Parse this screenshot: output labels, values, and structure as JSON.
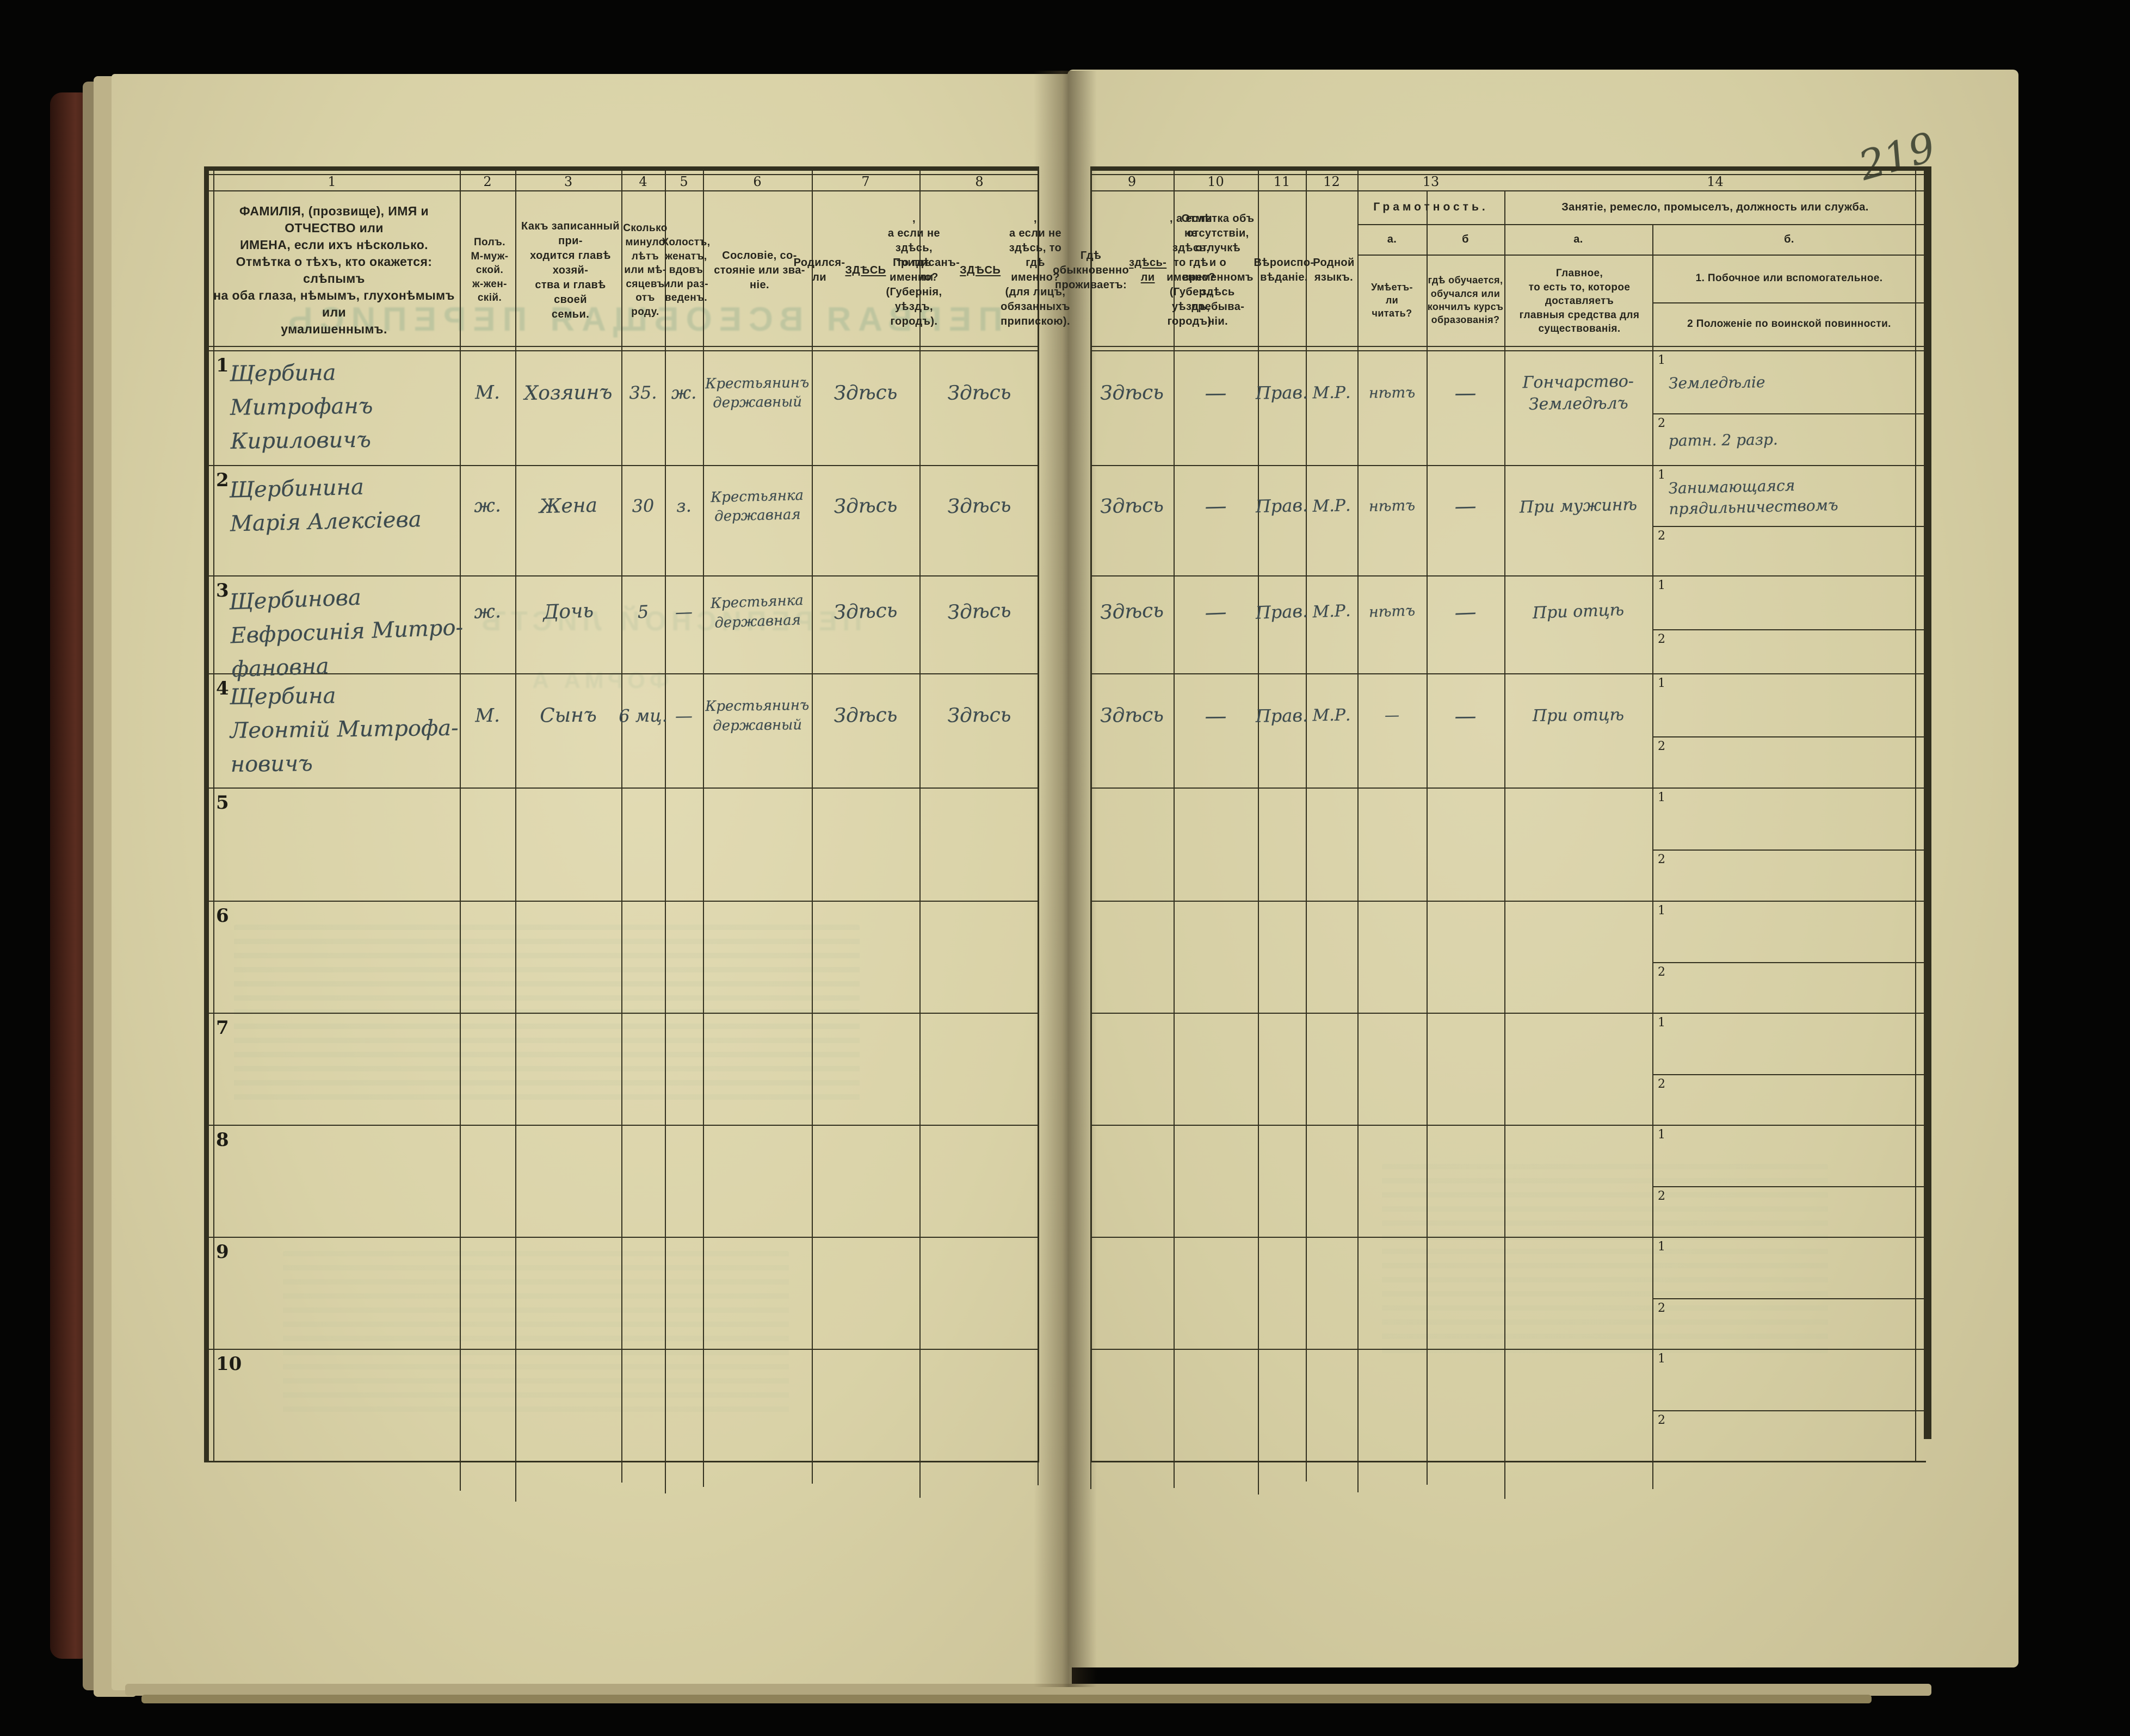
{
  "page": {
    "number": "219"
  },
  "bleedthrough": {
    "title": "ПЕРВАЯ ВСЕОБЩАЯ ПЕРЕПИСЬ",
    "subtitle": "ПЕРЕПИСНОЙ ЛИСТЪ",
    "form": "ФОРМА А"
  },
  "table": {
    "column_numbers": [
      "1",
      "2",
      "3",
      "4",
      "5",
      "6",
      "7",
      "8",
      "9",
      "10",
      "11",
      "12",
      "13",
      "14"
    ],
    "headers": {
      "c1": "ФАМИЛІЯ, (прозвище), ИМЯ и ОТЧЕСТВО или\nИМЕНА, если ихъ нѣсколько.\nОтмѣтка о тѣхъ, кто окажется: слѣпымъ\nна оба глаза, нѣмымъ, глухонѣмымъ или\nумалишеннымъ.",
      "c2": "Полъ.\nМ-муж-\nской.\nж-жен-\nскій.",
      "c3": "Какъ записанный при-\nходится главѣ хозяй-\nства и главѣ своей\nсемьи.",
      "c4": "Сколько\nминуло\nлѣтъ\nили мѣ-\nсяцевъ\nотъ роду.",
      "c5": "Холостъ,\nженатъ,\nвдовъ\nили раз-\nведенъ.",
      "c6": "Сословіе, со-\nстояніе или зва-\nніе.",
      "c7": "Родился-ли ЗДѢСЬ,\nа если не здѣсь,\nто гдѣ именно?\n(Губернія, уѣздъ, городъ).",
      "c8": "Приписанъ-ли ЗДѢСЬ,\nа если не здѣсь, то гдѣ\nименно?\n(для лицъ, обязанныхъ\nприпискою).",
      "c9": "Гдѣ обыкновенно\nпроживаетъ:\nздѣсь-ли, а если\nне здѣсь, то гдѣ\nименно?\n(Губер., уѣздъ, городъ).",
      "c10": "Отмѣтка объ\nотсутствіи, отлучкѣ\nи о временномъ\nздѣсь пребыва-\nніи.",
      "c11": "Вѣроиспо-\nвѣданіе.",
      "c12": "Родной\nязыкъ.",
      "c13_group": "Грамотность.",
      "c13a_label": "а.",
      "c13b_label": "б",
      "c13a": "Умѣетъ-\nли\nчитать?",
      "c13b": "гдѣ обучается,\nобучался или\nкончилъ курсъ\nобразованія?",
      "c14_group": "Занятіе, ремесло, промыселъ, должность или служба.",
      "c14a_label": "а.",
      "c14b_label": "б.",
      "c14a": "Главное,\nто есть то, которое доставляетъ\nглавныя средства для существованія.",
      "c14b1": "1. Побочное или вспомогательное.",
      "c14b2": "2 Положеніе по воинской повинности.",
      "row_sub_index1": "1",
      "row_sub_index2": "2"
    },
    "rows": [
      {
        "num": "1",
        "c1": "Щербина\nМитрофанъ Кириловичъ",
        "c2": "М.",
        "c3": "Хозяинъ",
        "c4": "35.",
        "c5": "ж.",
        "c6": "Крестьянинъ\nдержавный",
        "c7": "Здѣсь",
        "c8": "Здѣсь",
        "c9": "Здѣсь",
        "c10": "—",
        "c11": "Прав.",
        "c12": "М.Р.",
        "c13a": "нѣтъ",
        "c13b": "—",
        "c14a": "Гончарство-\nЗемледѣлъ",
        "c14b1": "Земледѣліе",
        "c14b2": "ратн. 2 разр."
      },
      {
        "num": "2",
        "c1": "Щербинина\nМарія Алексіева",
        "c2": "ж.",
        "c3": "Жена",
        "c4": "30",
        "c5": "з.",
        "c6": "Крестьянка\nдержавная",
        "c7": "Здѣсь",
        "c8": "Здѣсь",
        "c9": "Здѣсь",
        "c10": "—",
        "c11": "Прав.",
        "c12": "М.Р.",
        "c13a": "нѣтъ",
        "c13b": "—",
        "c14a": "При мужинѣ",
        "c14b1": "Занимающаяся\nпрядильничествомъ",
        "c14b2": ""
      },
      {
        "num": "3",
        "c1": "Щербинова\nЕвфросинія Митро-\nфановна",
        "c2": "ж.",
        "c3": "Дочь",
        "c4": "5",
        "c5": "—",
        "c6": "Крестьянка\nдержавная",
        "c7": "Здѣсь",
        "c8": "Здѣсь",
        "c9": "Здѣсь",
        "c10": "—",
        "c11": "Прав.",
        "c12": "М.Р.",
        "c13a": "нѣтъ",
        "c13b": "—",
        "c14a": "При отцѣ",
        "c14b1": "",
        "c14b2": ""
      },
      {
        "num": "4",
        "c1": "Щербина\nЛеонтій Митрофа-\nновичъ",
        "c2": "М.",
        "c3": "Сынъ",
        "c4": "6 мц.",
        "c5": "—",
        "c6": "Крестьянинъ\nдержавный",
        "c7": "Здѣсь",
        "c8": "Здѣсь",
        "c9": "Здѣсь",
        "c10": "—",
        "c11": "Прав.",
        "c12": "М.Р.",
        "c13a": "—",
        "c13b": "—",
        "c14a": "При отцѣ",
        "c14b1": "",
        "c14b2": ""
      },
      {
        "num": "5",
        "c1": "",
        "c2": "",
        "c3": "",
        "c4": "",
        "c5": "",
        "c6": "",
        "c7": "",
        "c8": "",
        "c9": "",
        "c10": "",
        "c11": "",
        "c12": "",
        "c13a": "",
        "c13b": "",
        "c14a": "",
        "c14b1": "",
        "c14b2": ""
      },
      {
        "num": "6",
        "c1": "",
        "c2": "",
        "c3": "",
        "c4": "",
        "c5": "",
        "c6": "",
        "c7": "",
        "c8": "",
        "c9": "",
        "c10": "",
        "c11": "",
        "c12": "",
        "c13a": "",
        "c13b": "",
        "c14a": "",
        "c14b1": "",
        "c14b2": ""
      },
      {
        "num": "7",
        "c1": "",
        "c2": "",
        "c3": "",
        "c4": "",
        "c5": "",
        "c6": "",
        "c7": "",
        "c8": "",
        "c9": "",
        "c10": "",
        "c11": "",
        "c12": "",
        "c13a": "",
        "c13b": "",
        "c14a": "",
        "c14b1": "",
        "c14b2": ""
      },
      {
        "num": "8",
        "c1": "",
        "c2": "",
        "c3": "",
        "c4": "",
        "c5": "",
        "c6": "",
        "c7": "",
        "c8": "",
        "c9": "",
        "c10": "",
        "c11": "",
        "c12": "",
        "c13a": "",
        "c13b": "",
        "c14a": "",
        "c14b1": "",
        "c14b2": ""
      },
      {
        "num": "9",
        "c1": "",
        "c2": "",
        "c3": "",
        "c4": "",
        "c5": "",
        "c6": "",
        "c7": "",
        "c8": "",
        "c9": "",
        "c10": "",
        "c11": "",
        "c12": "",
        "c13a": "",
        "c13b": "",
        "c14a": "",
        "c14b1": "",
        "c14b2": ""
      },
      {
        "num": "10",
        "c1": "",
        "c2": "",
        "c3": "",
        "c4": "",
        "c5": "",
        "c6": "",
        "c7": "",
        "c8": "",
        "c9": "",
        "c10": "",
        "c11": "",
        "c12": "",
        "c13a": "",
        "c13b": "",
        "c14a": "",
        "c14b1": "",
        "c14b2": ""
      }
    ]
  }
}
